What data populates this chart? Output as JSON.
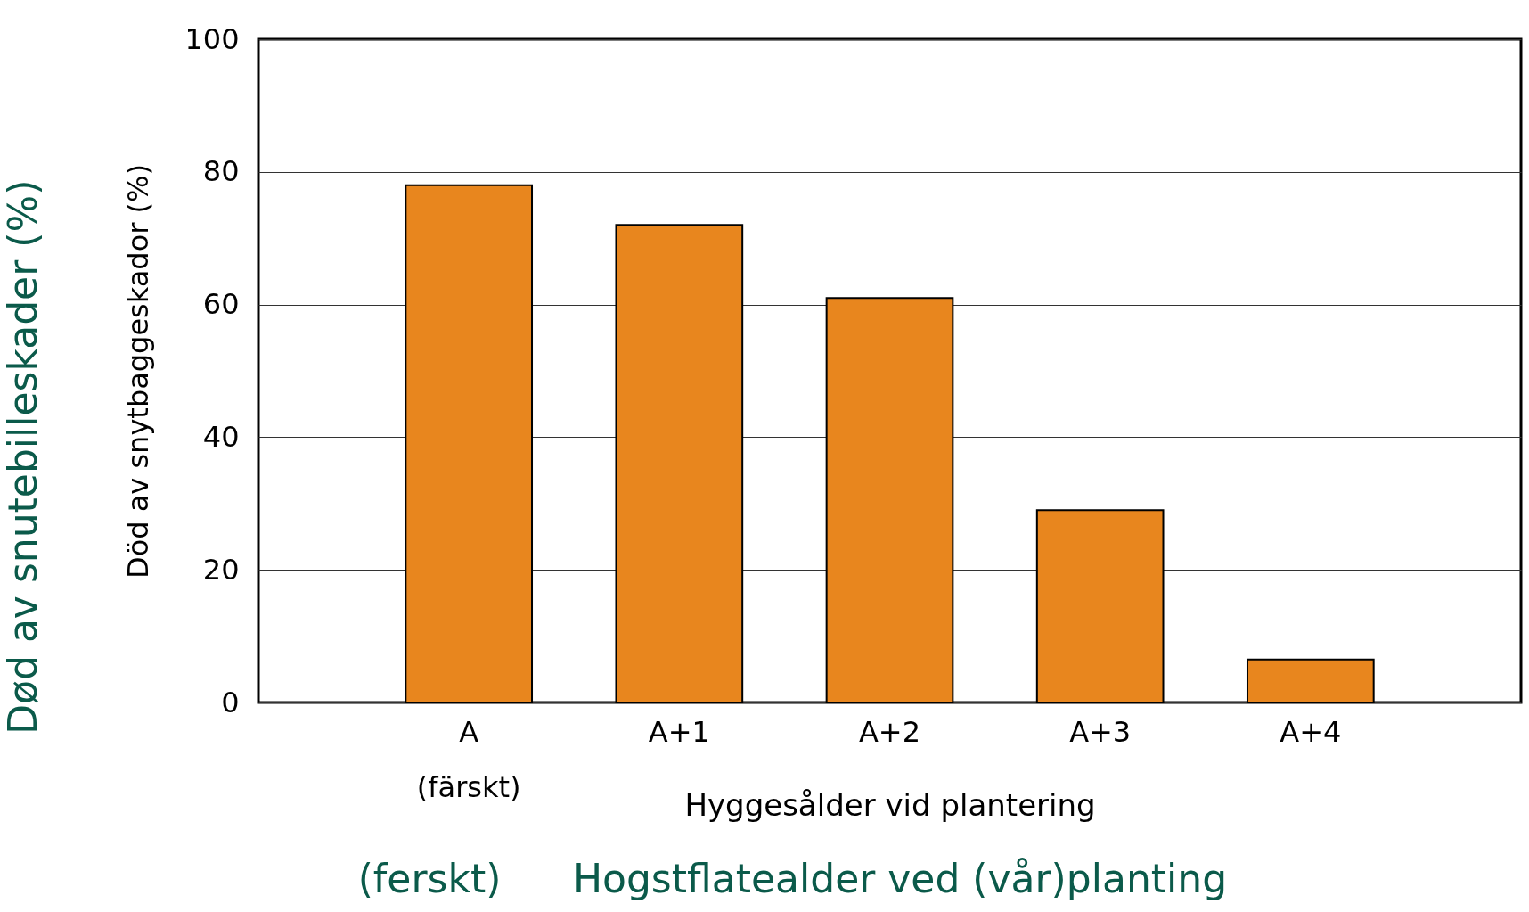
{
  "chart_data": {
    "type": "bar",
    "categories": [
      "A\n(färskt)",
      "A+1",
      "A+2",
      "A+3",
      "A+4"
    ],
    "values": [
      78,
      72,
      61,
      29,
      6.5
    ],
    "color": "#e8861e",
    "ylabel": "Död av snytbaggeskador (%)",
    "xlabel": "Hyggesålder vid plantering",
    "ylim": [
      0,
      100
    ],
    "yticks": [
      0,
      20,
      40,
      60,
      80,
      100
    ],
    "grid": "y",
    "annotations": [
      "Død av snutebilleskader (%)",
      "(ferskt)",
      "Hogstflatealder ved (vår)planting"
    ]
  }
}
